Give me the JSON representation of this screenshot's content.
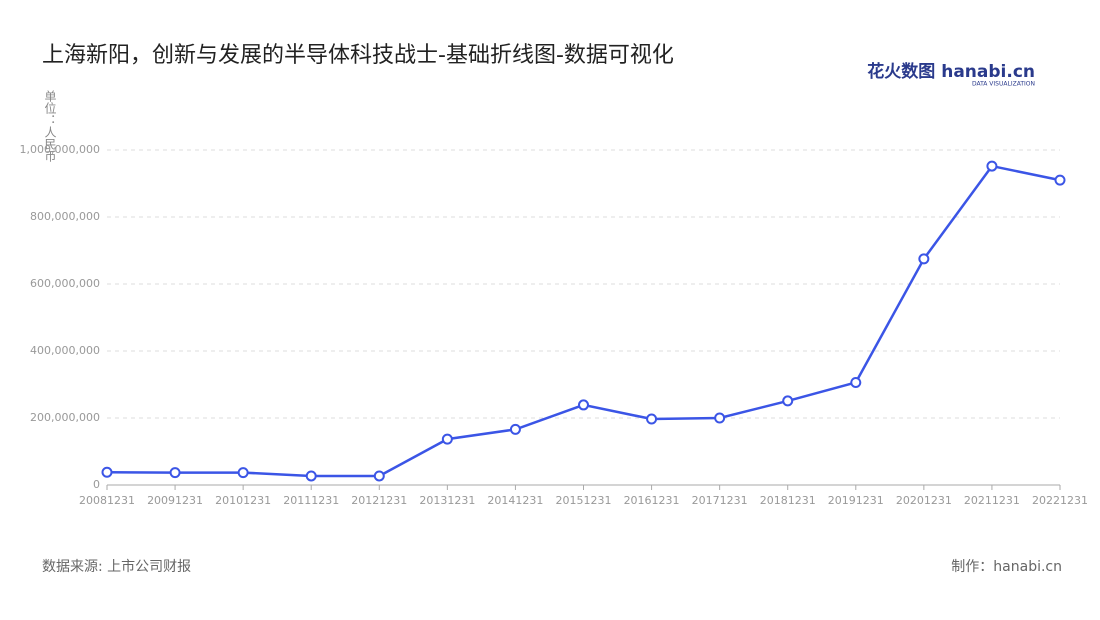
{
  "chart_data": {
    "type": "line",
    "title": "上海新阳，创新与发展的半导体科技战士-基础折线图-数据可视化",
    "y_label": "单位：人民币",
    "logo": "花火数图 hanabi.cn",
    "logo_subtitle": "DATA VISUALIZATION",
    "source": "数据来源: 上市公司财报",
    "credit": "制作：hanabi.cn",
    "categories": [
      "20081231",
      "20091231",
      "20101231",
      "20111231",
      "20121231",
      "20131231",
      "20141231",
      "20151231",
      "20161231",
      "20171231",
      "20181231",
      "20191231",
      "20201231",
      "20211231",
      "20221231"
    ],
    "series": [
      {
        "name": "上海新阳",
        "color": "#3b55e6",
        "values": [
          38000000,
          37000000,
          37000000,
          27000000,
          27000000,
          137000000,
          166000000,
          239000000,
          197000000,
          200000000,
          251000000,
          306000000,
          675000000,
          952000000,
          910000000
        ]
      }
    ],
    "ylim": [
      0,
      1000000000
    ],
    "yticks": [
      0,
      {
        "value": 200000000,
        "label": "200,000,000"
      },
      {
        "value": 400000000,
        "label": "400,000,000"
      },
      {
        "value": 600000000,
        "label": "600,000,000"
      },
      {
        "value": 800000000,
        "label": "800,000,000"
      },
      {
        "value": 1000000000,
        "label": "1,000,000,000"
      }
    ],
    "grid": true
  }
}
